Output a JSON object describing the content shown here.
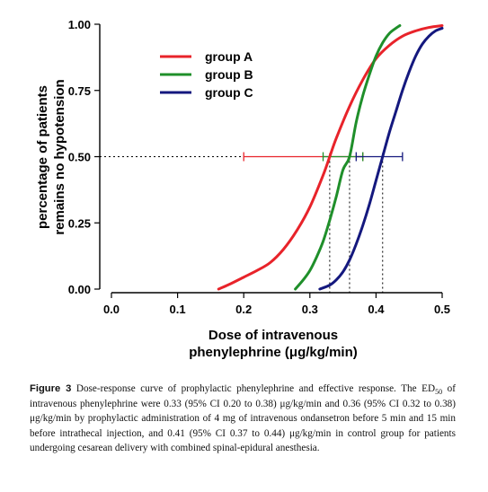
{
  "chart_data": {
    "type": "line",
    "xlabel": [
      "Dose of intravenous",
      "phenylephrine (μg/kg/min)"
    ],
    "ylabel": [
      "percentage of patients",
      "remains no hypotension"
    ],
    "xlim": [
      0.0,
      0.5
    ],
    "ylim": [
      0.0,
      1.0
    ],
    "x_ticks": [
      "0.0",
      "0.1",
      "0.2",
      "0.3",
      "0.4",
      "0.5"
    ],
    "y_ticks": [
      "0.00",
      "0.25",
      "0.50",
      "0.75",
      "1.00"
    ],
    "grid": false,
    "legend_position": "top-center",
    "series": [
      {
        "name": "group A",
        "color": "#e8232a",
        "x": [
          0.162,
          0.18,
          0.2,
          0.22,
          0.24,
          0.26,
          0.28,
          0.3,
          0.32,
          0.33,
          0.34,
          0.36,
          0.38,
          0.4,
          0.42,
          0.44,
          0.46,
          0.48,
          0.5
        ],
        "y": [
          0.0,
          0.02,
          0.045,
          0.07,
          0.1,
          0.15,
          0.22,
          0.31,
          0.43,
          0.5,
          0.57,
          0.69,
          0.79,
          0.87,
          0.92,
          0.955,
          0.975,
          0.988,
          0.995
        ],
        "ed50": 0.33,
        "ci": [
          0.2,
          0.38
        ]
      },
      {
        "name": "group B",
        "color": "#1f8f2a",
        "x": [
          0.278,
          0.29,
          0.3,
          0.31,
          0.32,
          0.33,
          0.34,
          0.35,
          0.36,
          0.37,
          0.38,
          0.39,
          0.4,
          0.41,
          0.42,
          0.43,
          0.436
        ],
        "y": [
          0.0,
          0.035,
          0.07,
          0.12,
          0.18,
          0.26,
          0.35,
          0.45,
          0.5,
          0.63,
          0.73,
          0.81,
          0.88,
          0.93,
          0.965,
          0.985,
          0.995
        ],
        "ed50": 0.36,
        "ci": [
          0.32,
          0.38
        ]
      },
      {
        "name": "group C",
        "color": "#14187e",
        "x": [
          0.315,
          0.33,
          0.34,
          0.35,
          0.36,
          0.37,
          0.38,
          0.39,
          0.4,
          0.41,
          0.42,
          0.43,
          0.44,
          0.45,
          0.46,
          0.47,
          0.48,
          0.49,
          0.5
        ],
        "y": [
          0.0,
          0.015,
          0.035,
          0.065,
          0.11,
          0.17,
          0.24,
          0.32,
          0.41,
          0.5,
          0.59,
          0.67,
          0.75,
          0.82,
          0.88,
          0.925,
          0.955,
          0.975,
          0.985
        ],
        "ed50": 0.41,
        "ci": [
          0.37,
          0.44
        ]
      }
    ]
  },
  "caption": {
    "figure_label": "Figure 3",
    "text": "Dose-response curve of prophylactic phenylephrine and effective response. The ED",
    "subscript": "50",
    "text_after": " of intravenous phenylephrine were 0.33 (95% CI 0.20 to 0.38) μg/kg/min and 0.36 (95% CI 0.32 to 0.38) μg/kg/min by prophylactic administration of 4 mg of intravenous ondansetron before 5 min and 15 min before intrathecal injection, and 0.41 (95% CI 0.37 to 0.44) μg/kg/min in control group for patients undergoing cesarean delivery with combined spinal-epidural anesthesia."
  }
}
